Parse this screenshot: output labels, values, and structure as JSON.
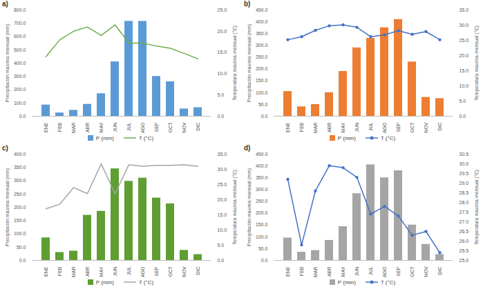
{
  "chart_data": [
    {
      "type": "bar",
      "title": "a)",
      "legend": "bottom",
      "grid": false,
      "y_label": "Precipitación máxima mensual (mm)",
      "y2_label": "Temperatura máxima mensual (°C)",
      "categories": [
        "ENE",
        "FEB",
        "MAR",
        "ABR",
        "MAY",
        "JUN",
        "JUL",
        "AGO",
        "SEP",
        "OCT",
        "NOV",
        "DIC"
      ],
      "series": [
        {
          "name": "P (mm)",
          "type": "bar",
          "color": "#5b9bd5",
          "values": [
            85,
            25,
            45,
            90,
            170,
            410,
            715,
            715,
            300,
            260,
            55,
            65
          ]
        },
        {
          "name": "T (°C)",
          "type": "line",
          "axis": "y2",
          "color": "#70ad47",
          "marker": "none",
          "values": [
            14,
            18,
            20,
            21,
            19,
            21.5,
            17.2,
            17.2,
            16.5,
            16,
            14.8,
            13.5
          ]
        }
      ],
      "ylim": [
        0,
        800
      ],
      "yticks": [
        {
          "value": 0,
          "label": "0.0"
        },
        {
          "value": 100,
          "label": "100.0"
        },
        {
          "value": 200,
          "label": "200.0"
        },
        {
          "value": 300,
          "label": "300.0"
        },
        {
          "value": 400,
          "label": "400.0"
        },
        {
          "value": 500,
          "label": "500.0"
        },
        {
          "value": 600,
          "label": "600.0"
        },
        {
          "value": 700,
          "label": "700.0"
        },
        {
          "value": 800,
          "label": "800.0"
        }
      ],
      "y2lim": [
        0,
        25
      ],
      "y2ticks": [
        {
          "value": 0,
          "label": "0.0"
        },
        {
          "value": 5,
          "label": "5.0"
        },
        {
          "value": 10,
          "label": "10.0"
        },
        {
          "value": 15,
          "label": "15.0"
        },
        {
          "value": 20,
          "label": "20.0"
        },
        {
          "value": 25,
          "label": "25.0"
        }
      ]
    },
    {
      "type": "bar",
      "title": "b)",
      "legend": "bottom",
      "grid": false,
      "y_label": "Precipitación máxima mensual (mm)",
      "y2_label": "Temperatura máxima mensual (°C)",
      "categories": [
        "ENE",
        "FEB",
        "MAR",
        "ABR",
        "MAY",
        "JUN",
        "JUL",
        "AGO",
        "SEP",
        "OCT",
        "NOV",
        "DIC"
      ],
      "series": [
        {
          "name": "P (mm)",
          "type": "bar",
          "color": "#ed7d31",
          "values": [
            105,
            40,
            50,
            100,
            190,
            290,
            330,
            375,
            410,
            230,
            80,
            75
          ]
        },
        {
          "name": "T (°C)",
          "type": "line",
          "axis": "y2",
          "color": "#4472c4",
          "marker": "circle",
          "values": [
            25.2,
            26.2,
            28.3,
            29.8,
            30.1,
            29.3,
            26.2,
            26.8,
            28.2,
            27,
            27.9,
            25.2
          ]
        }
      ],
      "ylim": [
        0,
        450
      ],
      "yticks": [
        {
          "value": 0,
          "label": "0.0"
        },
        {
          "value": 50,
          "label": "50.0"
        },
        {
          "value": 100,
          "label": "100.0"
        },
        {
          "value": 150,
          "label": "150.0"
        },
        {
          "value": 200,
          "label": "200.0"
        },
        {
          "value": 250,
          "label": "250.0"
        },
        {
          "value": 300,
          "label": "300.0"
        },
        {
          "value": 350,
          "label": "350.0"
        },
        {
          "value": 400,
          "label": "400.0"
        },
        {
          "value": 450,
          "label": "450.0"
        }
      ],
      "y2lim": [
        0,
        35
      ],
      "y2ticks": [
        {
          "value": 0,
          "label": "0.0"
        },
        {
          "value": 5,
          "label": "5.0"
        },
        {
          "value": 10,
          "label": "10.0"
        },
        {
          "value": 15,
          "label": "15.0"
        },
        {
          "value": 20,
          "label": "20.0"
        },
        {
          "value": 25,
          "label": "25.0"
        },
        {
          "value": 30,
          "label": "30.0"
        },
        {
          "value": 35,
          "label": "35.0"
        }
      ]
    },
    {
      "type": "bar",
      "title": "c)",
      "legend": "bottom",
      "grid": false,
      "y_label": "Precipitación máxima mensual (mm)",
      "y2_label": "Temperatura máxima mensual (°C)",
      "categories": [
        "ENE",
        "FEB",
        "MAR",
        "ABR",
        "MAY",
        "JUN",
        "JUL",
        "AGO",
        "SEP",
        "OCT",
        "NOV",
        "DIC"
      ],
      "series": [
        {
          "name": "P (mm)",
          "type": "bar",
          "color": "#5e9e32",
          "values": [
            85,
            30,
            35,
            170,
            185,
            345,
            298,
            310,
            235,
            213,
            38,
            22
          ]
        },
        {
          "name": "T (°C)",
          "type": "line",
          "axis": "y2",
          "color": "#a5a5a5",
          "marker": "none",
          "values": [
            17,
            18.5,
            24,
            22,
            31.8,
            22,
            31.5,
            31,
            31.3,
            31.3,
            31.5,
            31
          ]
        }
      ],
      "ylim": [
        0,
        400
      ],
      "yticks": [
        {
          "value": 0,
          "label": "0.0"
        },
        {
          "value": 50,
          "label": "50.0"
        },
        {
          "value": 100,
          "label": "100.0"
        },
        {
          "value": 150,
          "label": "150.0"
        },
        {
          "value": 200,
          "label": "200.0"
        },
        {
          "value": 250,
          "label": "250.0"
        },
        {
          "value": 300,
          "label": "300.0"
        },
        {
          "value": 350,
          "label": "350.0"
        },
        {
          "value": 400,
          "label": "400.0"
        }
      ],
      "y2lim": [
        0,
        35
      ],
      "y2ticks": [
        {
          "value": 0,
          "label": "0.0"
        },
        {
          "value": 5,
          "label": "5.0"
        },
        {
          "value": 10,
          "label": "10.0"
        },
        {
          "value": 15,
          "label": "15.0"
        },
        {
          "value": 20,
          "label": "20.0"
        },
        {
          "value": 25,
          "label": "25.0"
        },
        {
          "value": 30,
          "label": "30.0"
        },
        {
          "value": 35,
          "label": "35.0"
        }
      ]
    },
    {
      "type": "bar",
      "title": "d)",
      "legend": "bottom",
      "grid": false,
      "y_label": "Precipitación máxima mensual (mm)",
      "y2_label": "Temperatura máxima mensual (°C)",
      "categories": [
        "ENE",
        "FEB",
        "MAR",
        "ABR",
        "MAY",
        "JUN",
        "JUL",
        "AGO",
        "SEP",
        "OCT",
        "NOV",
        "DIC"
      ],
      "series": [
        {
          "name": "P (mm)",
          "type": "bar",
          "color": "#a5a5a5",
          "values": [
            95,
            35,
            42,
            85,
            143,
            283,
            405,
            350,
            380,
            150,
            68,
            25
          ]
        },
        {
          "name": "T (°C)",
          "type": "line",
          "axis": "y2",
          "color": "#4472c4",
          "marker": "circle",
          "values": [
            29.2,
            25.8,
            28.6,
            29.9,
            29.8,
            29.3,
            27.4,
            27.8,
            27.3,
            26.3,
            26.5,
            25.4
          ]
        }
      ],
      "ylim": [
        0,
        450
      ],
      "yticks": [
        {
          "value": 0,
          "label": "0.0"
        },
        {
          "value": 50,
          "label": "50.0"
        },
        {
          "value": 100,
          "label": "100.0"
        },
        {
          "value": 150,
          "label": "150.0"
        },
        {
          "value": 200,
          "label": "200.0"
        },
        {
          "value": 250,
          "label": "250.0"
        },
        {
          "value": 300,
          "label": "300.0"
        },
        {
          "value": 350,
          "label": "350.0"
        },
        {
          "value": 400,
          "label": "400.0"
        },
        {
          "value": 450,
          "label": "450.0"
        }
      ],
      "y2lim": [
        25,
        30.5
      ],
      "y2ticks": [
        {
          "value": 25,
          "label": "25.0"
        },
        {
          "value": 25.5,
          "label": "25.5"
        },
        {
          "value": 26,
          "label": "26.0"
        },
        {
          "value": 26.5,
          "label": "26.5"
        },
        {
          "value": 27,
          "label": "27.0"
        },
        {
          "value": 27.5,
          "label": "27.5"
        },
        {
          "value": 28,
          "label": "28.0"
        },
        {
          "value": 28.5,
          "label": "28.5"
        },
        {
          "value": 29,
          "label": "29.0"
        },
        {
          "value": 29.5,
          "label": "29.5"
        },
        {
          "value": 30,
          "label": "30.0"
        },
        {
          "value": 30.5,
          "label": "30.5"
        }
      ]
    }
  ]
}
